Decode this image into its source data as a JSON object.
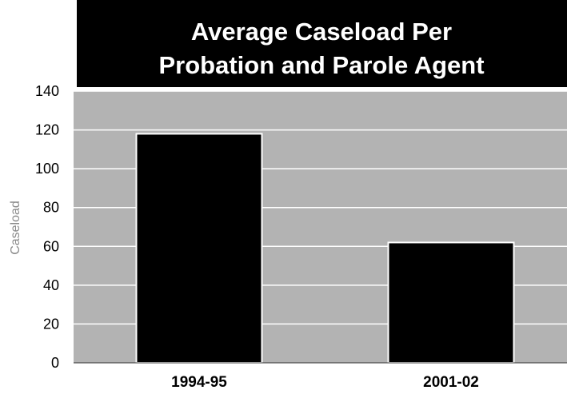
{
  "chart_data": {
    "type": "bar",
    "title_lines": [
      "Average Caseload Per",
      "Probation and Parole Agent"
    ],
    "xlabel": "",
    "ylabel": "Caseload",
    "categories": [
      "1994-95",
      "2001-02"
    ],
    "values": [
      118,
      62
    ],
    "ylim": [
      0,
      140
    ],
    "yticks": [
      0,
      20,
      40,
      60,
      80,
      100,
      120,
      140
    ],
    "grid": true,
    "legend": "none",
    "colors": {
      "title_bg": "#000000",
      "title_text": "#ffffff",
      "plot_bg": "#b3b3b3",
      "gridline": "#ffffff",
      "bar_fill": "#000000",
      "bar_edge": "#ffffff"
    }
  }
}
